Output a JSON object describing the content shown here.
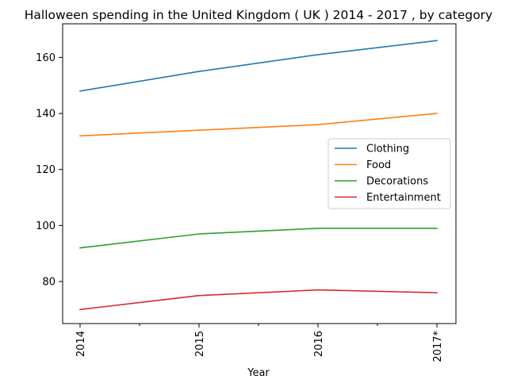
{
  "chart_data": {
    "type": "line",
    "title": "Halloween spending in the United Kingdom ( UK ) 2014 - 2017 , by category",
    "xlabel": "Year",
    "ylabel": "",
    "categories": [
      "2014",
      "2015",
      "2016",
      "2017*"
    ],
    "ylim": [
      65,
      172
    ],
    "yticks": [
      80,
      100,
      120,
      140,
      160
    ],
    "grid": false,
    "legend_position": "center-right",
    "series": [
      {
        "name": "Clothing",
        "color": "#1f77b4",
        "values": [
          148,
          155,
          161,
          166
        ]
      },
      {
        "name": "Food",
        "color": "#ff7f0e",
        "values": [
          132,
          134,
          136,
          140
        ]
      },
      {
        "name": "Decorations",
        "color": "#2ca02c",
        "values": [
          92,
          97,
          99,
          99
        ]
      },
      {
        "name": "Entertainment",
        "color": "#d62728",
        "values": [
          70,
          75,
          77,
          76
        ]
      }
    ]
  }
}
